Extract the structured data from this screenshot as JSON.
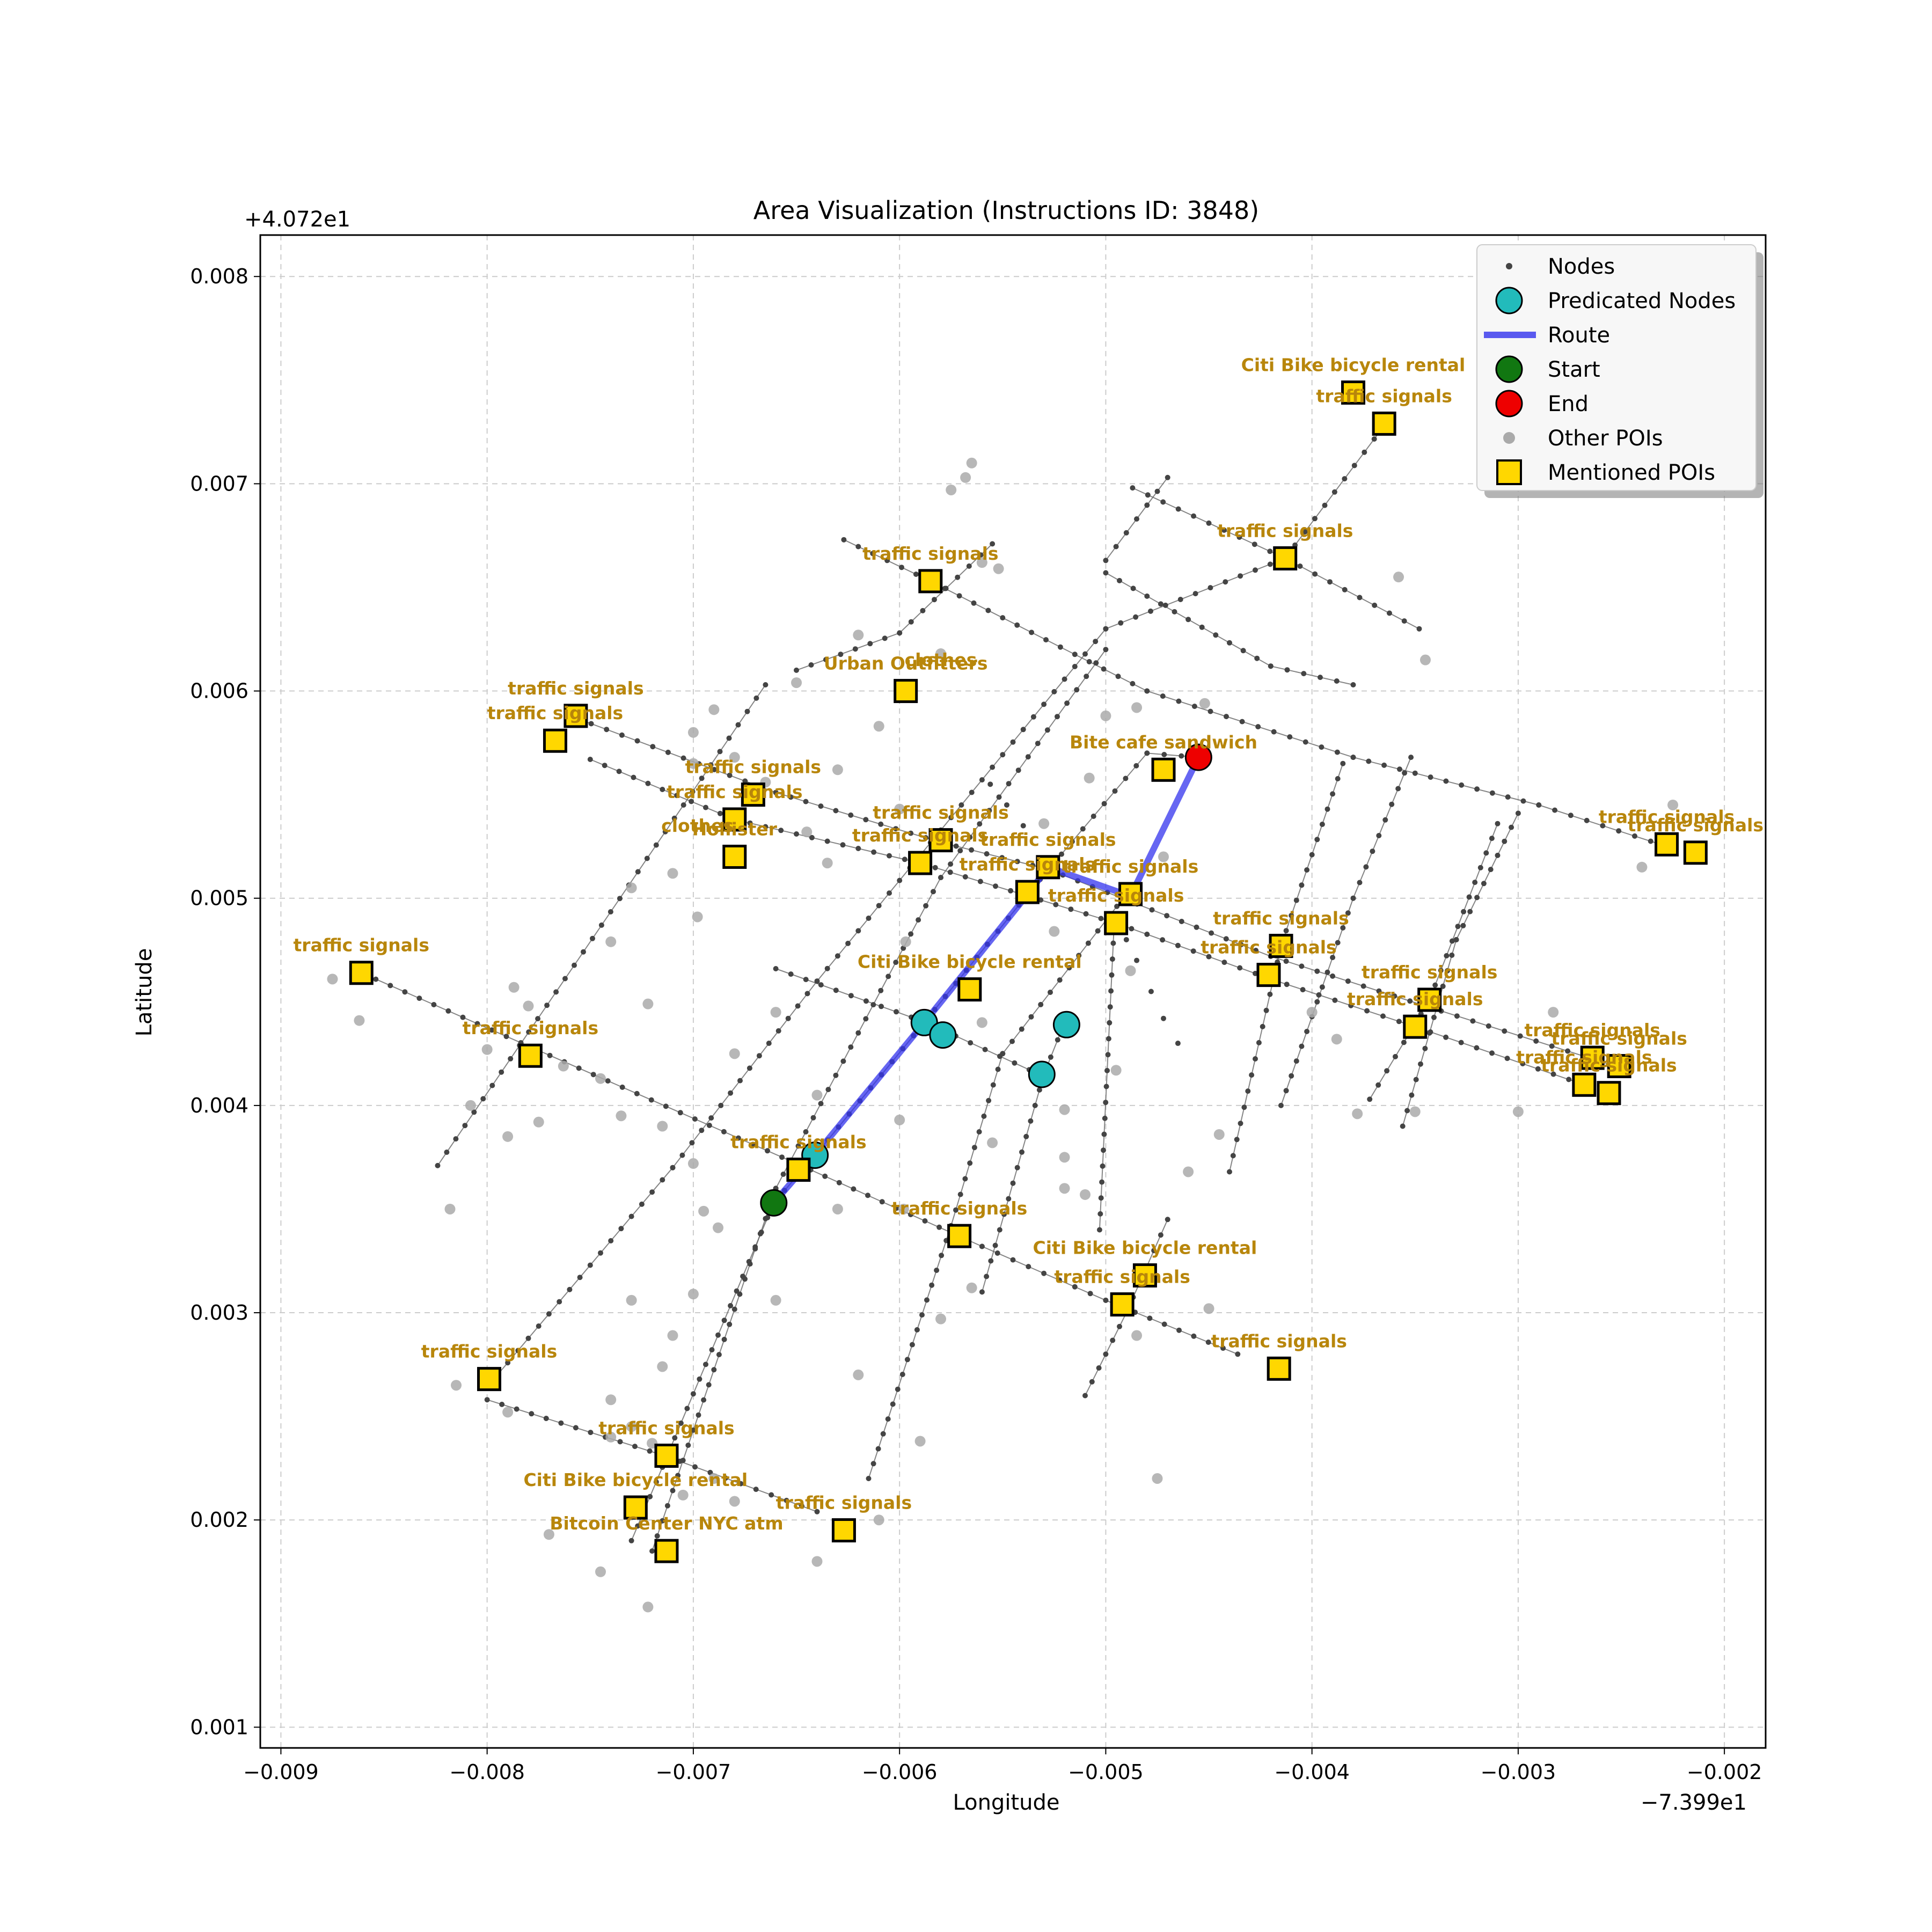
{
  "chart_data": {
    "type": "scatter",
    "title": "Area Visualization (Instructions ID: 3848)",
    "xlabel": "Longitude",
    "ylabel": "Latitude",
    "x_offset_label": "−7.399e1",
    "y_offset_label": "+4.072e1",
    "xlim": [
      -0.0091,
      -0.0018
    ],
    "ylim": [
      0.0009,
      0.0082
    ],
    "x_ticks": [
      -0.009,
      -0.008,
      -0.007,
      -0.006,
      -0.005,
      -0.004,
      -0.003,
      -0.002
    ],
    "x_tick_labels": [
      "−0.009",
      "−0.008",
      "−0.007",
      "−0.006",
      "−0.005",
      "−0.004",
      "−0.003",
      "−0.002"
    ],
    "y_ticks": [
      0.001,
      0.002,
      0.003,
      0.004,
      0.005,
      0.006,
      0.007,
      0.008
    ],
    "y_tick_labels": [
      "0.001",
      "0.002",
      "0.003",
      "0.004",
      "0.005",
      "0.006",
      "0.007",
      "0.008"
    ],
    "grid": true,
    "legend": {
      "position": "top-right",
      "entries": [
        "Nodes",
        "Predicated Nodes",
        "Route",
        "Start",
        "End",
        "Other POIs",
        "Mentioned POIs"
      ]
    },
    "colors": {
      "node": "#444444",
      "street": "#666666",
      "predicated": "#22bbbb",
      "route": "#3333ee",
      "start": "#117711",
      "end": "#ee0000",
      "other_poi": "#aaaaaa",
      "mentioned_poi": "#ffd700",
      "poi_label": "#b8860b",
      "grid": "#cccccc"
    },
    "streets": [
      [
        [
          -0.00861,
          0.00464
        ],
        [
          -0.0065,
          0.00372
        ],
        [
          -0.0056,
          0.00332
        ],
        [
          -0.005,
          0.00306
        ],
        [
          -0.00436,
          0.0028
        ]
      ],
      [
        [
          -0.00757,
          0.00587
        ],
        [
          -0.0066,
          0.00551
        ],
        [
          -0.0058,
          0.00527
        ],
        [
          -0.00528,
          0.00514
        ],
        [
          -0.0042,
          0.00472
        ],
        [
          -0.00345,
          0.00448
        ],
        [
          -0.00253,
          0.00419
        ]
      ],
      [
        [
          -0.0075,
          0.00567
        ],
        [
          -0.0068,
          0.00538
        ],
        [
          -0.0059,
          0.00517
        ],
        [
          -0.00495,
          0.00488
        ],
        [
          -0.0042,
          0.00461
        ],
        [
          -0.0035,
          0.00438
        ],
        [
          -0.00268,
          0.0041
        ]
      ],
      [
        [
          -0.00627,
          0.00673
        ],
        [
          -0.00585,
          0.00653
        ],
        [
          -0.0048,
          0.006
        ],
        [
          -0.0038,
          0.00568
        ],
        [
          -0.0029,
          0.00545
        ],
        [
          -0.00228,
          0.00525
        ]
      ],
      [
        [
          -0.00487,
          0.00698
        ],
        [
          -0.00413,
          0.00664
        ],
        [
          -0.00348,
          0.0063
        ]
      ],
      [
        [
          -0.005,
          0.00657
        ],
        [
          -0.0042,
          0.00612
        ],
        [
          -0.0038,
          0.00603
        ]
      ],
      [
        [
          -0.005,
          0.00663
        ],
        [
          -0.0047,
          0.00703
        ]
      ],
      [
        [
          -0.0066,
          0.00466
        ],
        [
          -0.00587,
          0.0044
        ],
        [
          -0.0053,
          0.00414
        ]
      ],
      [
        [
          -0.008,
          0.00258
        ],
        [
          -0.00714,
          0.00231
        ],
        [
          -0.0064,
          0.00204
        ]
      ],
      [
        [
          -0.00824,
          0.00371
        ],
        [
          -0.00665,
          0.00603
        ]
      ],
      [
        [
          -0.00795,
          0.0027
        ],
        [
          -0.0071,
          0.0037
        ],
        [
          -0.0064,
          0.0046
        ],
        [
          -0.005,
          0.0063
        ],
        [
          -0.00413,
          0.00664
        ],
        [
          -0.00365,
          0.00728
        ]
      ],
      [
        [
          -0.0073,
          0.0019
        ],
        [
          -0.00661,
          0.00353
        ],
        [
          -0.0064,
          0.00377
        ],
        [
          -0.00588,
          0.0044
        ],
        [
          -0.00537,
          0.00503
        ],
        [
          -0.0048,
          0.0057
        ],
        [
          -0.00455,
          0.00568
        ]
      ],
      [
        [
          -0.0072,
          0.00185
        ],
        [
          -0.0066,
          0.0036
        ],
        [
          -0.0058,
          0.0051
        ],
        [
          -0.005,
          0.0062
        ]
      ],
      [
        [
          -0.00615,
          0.0022
        ],
        [
          -0.00575,
          0.00342
        ],
        [
          -0.0055,
          0.00425
        ],
        [
          -0.0049,
          0.00502
        ]
      ],
      [
        [
          -0.0051,
          0.0026
        ],
        [
          -0.0049,
          0.003
        ],
        [
          -0.0047,
          0.00345
        ]
      ],
      [
        [
          -0.00503,
          0.0034
        ],
        [
          -0.00496,
          0.00486
        ]
      ],
      [
        [
          -0.0056,
          0.0031
        ],
        [
          -0.0053,
          0.00415
        ],
        [
          -0.0052,
          0.0044
        ]
      ],
      [
        [
          -0.0044,
          0.00368
        ],
        [
          -0.00415,
          0.00477
        ],
        [
          -0.00385,
          0.00565
        ]
      ],
      [
        [
          -0.00415,
          0.004
        ],
        [
          -0.0038,
          0.005
        ],
        [
          -0.00352,
          0.00568
        ]
      ],
      [
        [
          -0.00372,
          0.00403
        ],
        [
          -0.00343,
          0.00451
        ],
        [
          -0.0031,
          0.00536
        ]
      ],
      [
        [
          -0.00356,
          0.0039
        ],
        [
          -0.0033,
          0.0048
        ],
        [
          -0.003,
          0.00541
        ]
      ],
      [
        [
          -0.0065,
          0.0061
        ],
        [
          -0.006,
          0.00628
        ],
        [
          -0.00555,
          0.00671
        ]
      ]
    ],
    "other_pois": [
      [
        -0.00875,
        0.00461
      ],
      [
        -0.00862,
        0.00441
      ],
      [
        -0.00818,
        0.0035
      ],
      [
        -0.00808,
        0.004
      ],
      [
        -0.008,
        0.00427
      ],
      [
        -0.0079,
        0.00385
      ],
      [
        -0.00787,
        0.00457
      ],
      [
        -0.0078,
        0.00448
      ],
      [
        -0.00775,
        0.00392
      ],
      [
        -0.00763,
        0.00419
      ],
      [
        -0.00745,
        0.00413
      ],
      [
        -0.00735,
        0.00395
      ],
      [
        -0.0073,
        0.00505
      ],
      [
        -0.00722,
        0.00449
      ],
      [
        -0.0074,
        0.00479
      ],
      [
        -0.0071,
        0.00512
      ],
      [
        -0.00698,
        0.00491
      ],
      [
        -0.0069,
        0.00591
      ],
      [
        -0.0068,
        0.00568
      ],
      [
        -0.00665,
        0.00556
      ],
      [
        -0.0065,
        0.00604
      ],
      [
        -0.00645,
        0.00532
      ],
      [
        -0.00635,
        0.00517
      ],
      [
        -0.0063,
        0.00562
      ],
      [
        -0.0062,
        0.00627
      ],
      [
        -0.0061,
        0.00583
      ],
      [
        -0.006,
        0.00543
      ],
      [
        -0.00597,
        0.00479
      ],
      [
        -0.0059,
        0.0044
      ],
      [
        -0.0058,
        0.00618
      ],
      [
        -0.00575,
        0.00697
      ],
      [
        -0.00568,
        0.00703
      ],
      [
        -0.00565,
        0.0071
      ],
      [
        -0.0056,
        0.00662
      ],
      [
        -0.00552,
        0.00659
      ],
      [
        -0.0056,
        0.0044
      ],
      [
        -0.0053,
        0.00536
      ],
      [
        -0.00525,
        0.00484
      ],
      [
        -0.0052,
        0.00398
      ],
      [
        -0.0051,
        0.00357
      ],
      [
        -0.00508,
        0.00558
      ],
      [
        -0.005,
        0.00588
      ],
      [
        -0.00485,
        0.00592
      ],
      [
        -0.00472,
        0.0052
      ],
      [
        -0.00452,
        0.00594
      ],
      [
        -0.0046,
        0.00368
      ],
      [
        -0.0045,
        0.00302
      ],
      [
        -0.00445,
        0.00386
      ],
      [
        -0.004,
        0.00445
      ],
      [
        -0.00388,
        0.00432
      ],
      [
        -0.00378,
        0.00396
      ],
      [
        -0.00358,
        0.00655
      ],
      [
        -0.0035,
        0.00397
      ],
      [
        -0.00345,
        0.00615
      ],
      [
        -0.003,
        0.00397
      ],
      [
        -0.00283,
        0.00445
      ],
      [
        -0.0024,
        0.00515
      ],
      [
        -0.00225,
        0.00545
      ],
      [
        -0.00715,
        0.0039
      ],
      [
        -0.007,
        0.00372
      ],
      [
        -0.00695,
        0.00349
      ],
      [
        -0.00688,
        0.00341
      ],
      [
        -0.007,
        0.00309
      ],
      [
        -0.0071,
        0.00289
      ],
      [
        -0.00715,
        0.00274
      ],
      [
        -0.0073,
        0.00306
      ],
      [
        -0.0073,
        0.00245
      ],
      [
        -0.0072,
        0.00237
      ],
      [
        -0.00705,
        0.00212
      ],
      [
        -0.0069,
        0.0022
      ],
      [
        -0.0068,
        0.00209
      ],
      [
        -0.0074,
        0.0024
      ],
      [
        -0.00745,
        0.00175
      ],
      [
        -0.0074,
        0.00258
      ],
      [
        -0.00722,
        0.00158
      ],
      [
        -0.0077,
        0.00193
      ],
      [
        -0.0079,
        0.00252
      ],
      [
        -0.00815,
        0.00265
      ],
      [
        -0.007,
        0.0058
      ],
      [
        -0.007,
        0.00565
      ],
      [
        -0.0066,
        0.00306
      ],
      [
        -0.0064,
        0.0018
      ],
      [
        -0.0061,
        0.002
      ],
      [
        -0.0062,
        0.0027
      ],
      [
        -0.00598,
        0.0035
      ],
      [
        -0.0059,
        0.00238
      ],
      [
        -0.0058,
        0.00297
      ],
      [
        -0.00565,
        0.00312
      ],
      [
        -0.00555,
        0.00382
      ],
      [
        -0.0052,
        0.00375
      ],
      [
        -0.00495,
        0.00417
      ],
      [
        -0.00488,
        0.00465
      ],
      [
        -0.00485,
        0.00289
      ],
      [
        -0.00475,
        0.0022
      ],
      [
        -0.0052,
        0.0036
      ],
      [
        -0.0064,
        0.00405
      ],
      [
        -0.0063,
        0.0035
      ],
      [
        -0.006,
        0.00393
      ],
      [
        -0.0068,
        0.00425
      ],
      [
        -0.0066,
        0.00445
      ]
    ],
    "nodes_extra": [
      [
        -0.0049,
        0.0048
      ],
      [
        -0.00485,
        0.0047
      ],
      [
        -0.00478,
        0.00455
      ],
      [
        -0.00472,
        0.00442
      ],
      [
        -0.00465,
        0.0043
      ],
      [
        -0.0054,
        0.00535
      ],
      [
        -0.00548,
        0.00545
      ],
      [
        -0.00556,
        0.00555
      ]
    ],
    "predicated_nodes": [
      [
        -0.00641,
        0.00376
      ],
      [
        -0.00588,
        0.0044
      ],
      [
        -0.00579,
        0.00434
      ],
      [
        -0.00531,
        0.00415
      ],
      [
        -0.00519,
        0.00439
      ]
    ],
    "route": [
      [
        -0.00661,
        0.00353
      ],
      [
        -0.00641,
        0.00376
      ],
      [
        -0.00588,
        0.0044
      ],
      [
        -0.00537,
        0.00503
      ],
      [
        -0.00528,
        0.00515
      ],
      [
        -0.00488,
        0.00501
      ],
      [
        -0.00455,
        0.00568
      ]
    ],
    "start": [
      -0.00661,
      0.00353
    ],
    "end": [
      -0.00455,
      0.00568
    ],
    "mentioned_pois": [
      {
        "x": -0.0038,
        "y": 0.00744,
        "label": "Citi Bike bicycle rental"
      },
      {
        "x": -0.00365,
        "y": 0.00729,
        "label": "traffic signals"
      },
      {
        "x": -0.00413,
        "y": 0.00664,
        "label": "traffic signals"
      },
      {
        "x": -0.00585,
        "y": 0.00653,
        "label": "traffic signals"
      },
      {
        "x": -0.00597,
        "y": 0.006,
        "label": "Urban Outfitters"
      },
      {
        "x": -0.00757,
        "y": 0.00588,
        "label": "traffic signals"
      },
      {
        "x": -0.00767,
        "y": 0.00576,
        "label": "traffic signals"
      },
      {
        "x": -0.00472,
        "y": 0.00562,
        "label": "Bite cafe sandwich"
      },
      {
        "x": -0.00671,
        "y": 0.0055,
        "label": "traffic signals"
      },
      {
        "x": -0.0068,
        "y": 0.00538,
        "label": "traffic signals"
      },
      {
        "x": -0.0058,
        "y": 0.00528,
        "label": "traffic signals"
      },
      {
        "x": -0.0059,
        "y": 0.00517,
        "label": "traffic signals"
      },
      {
        "x": -0.0068,
        "y": 0.0052,
        "label": "Hollister"
      },
      {
        "x": -0.00528,
        "y": 0.00515,
        "label": "traffic signals"
      },
      {
        "x": -0.00538,
        "y": 0.00503,
        "label": "traffic signals"
      },
      {
        "x": -0.00488,
        "y": 0.00502,
        "label": "traffic signals"
      },
      {
        "x": -0.00495,
        "y": 0.00488,
        "label": "traffic signals"
      },
      {
        "x": -0.00415,
        "y": 0.00477,
        "label": "traffic signals"
      },
      {
        "x": -0.00421,
        "y": 0.00463,
        "label": "traffic signals"
      },
      {
        "x": -0.00861,
        "y": 0.00464,
        "label": "traffic signals"
      },
      {
        "x": -0.00566,
        "y": 0.00456,
        "label": "Citi Bike bicycle rental"
      },
      {
        "x": -0.00343,
        "y": 0.00451,
        "label": "traffic signals"
      },
      {
        "x": -0.0035,
        "y": 0.00438,
        "label": "traffic signals"
      },
      {
        "x": -0.00779,
        "y": 0.00424,
        "label": "traffic signals"
      },
      {
        "x": -0.00228,
        "y": 0.00526,
        "label": "traffic signals"
      },
      {
        "x": -0.00214,
        "y": 0.00522,
        "label": "traffic signals"
      },
      {
        "x": -0.00264,
        "y": 0.00423,
        "label": "traffic signals"
      },
      {
        "x": -0.00251,
        "y": 0.00419,
        "label": "traffic signals"
      },
      {
        "x": -0.00268,
        "y": 0.0041,
        "label": "traffic signals"
      },
      {
        "x": -0.00256,
        "y": 0.00406,
        "label": "traffic signals"
      },
      {
        "x": -0.00649,
        "y": 0.00369,
        "label": "traffic signals"
      },
      {
        "x": -0.00571,
        "y": 0.00337,
        "label": "traffic signals"
      },
      {
        "x": -0.00481,
        "y": 0.00318,
        "label": "Citi Bike bicycle rental"
      },
      {
        "x": -0.00492,
        "y": 0.00304,
        "label": "traffic signals"
      },
      {
        "x": -0.00416,
        "y": 0.00273,
        "label": "traffic signals"
      },
      {
        "x": -0.00799,
        "y": 0.00268,
        "label": "traffic signals"
      },
      {
        "x": -0.00713,
        "y": 0.00231,
        "label": "traffic signals"
      },
      {
        "x": -0.00728,
        "y": 0.00206,
        "label": "Citi Bike bicycle rental"
      },
      {
        "x": -0.00627,
        "y": 0.00195,
        "label": "traffic signals"
      },
      {
        "x": -0.00713,
        "y": 0.00185,
        "label": "Bitcoin Center NYC atm"
      }
    ],
    "extra_labels": [
      {
        "x": -0.0058,
        "y": 0.00612,
        "label": "clothes"
      },
      {
        "x": -0.00698,
        "y": 0.00532,
        "label": "clothes"
      }
    ]
  }
}
